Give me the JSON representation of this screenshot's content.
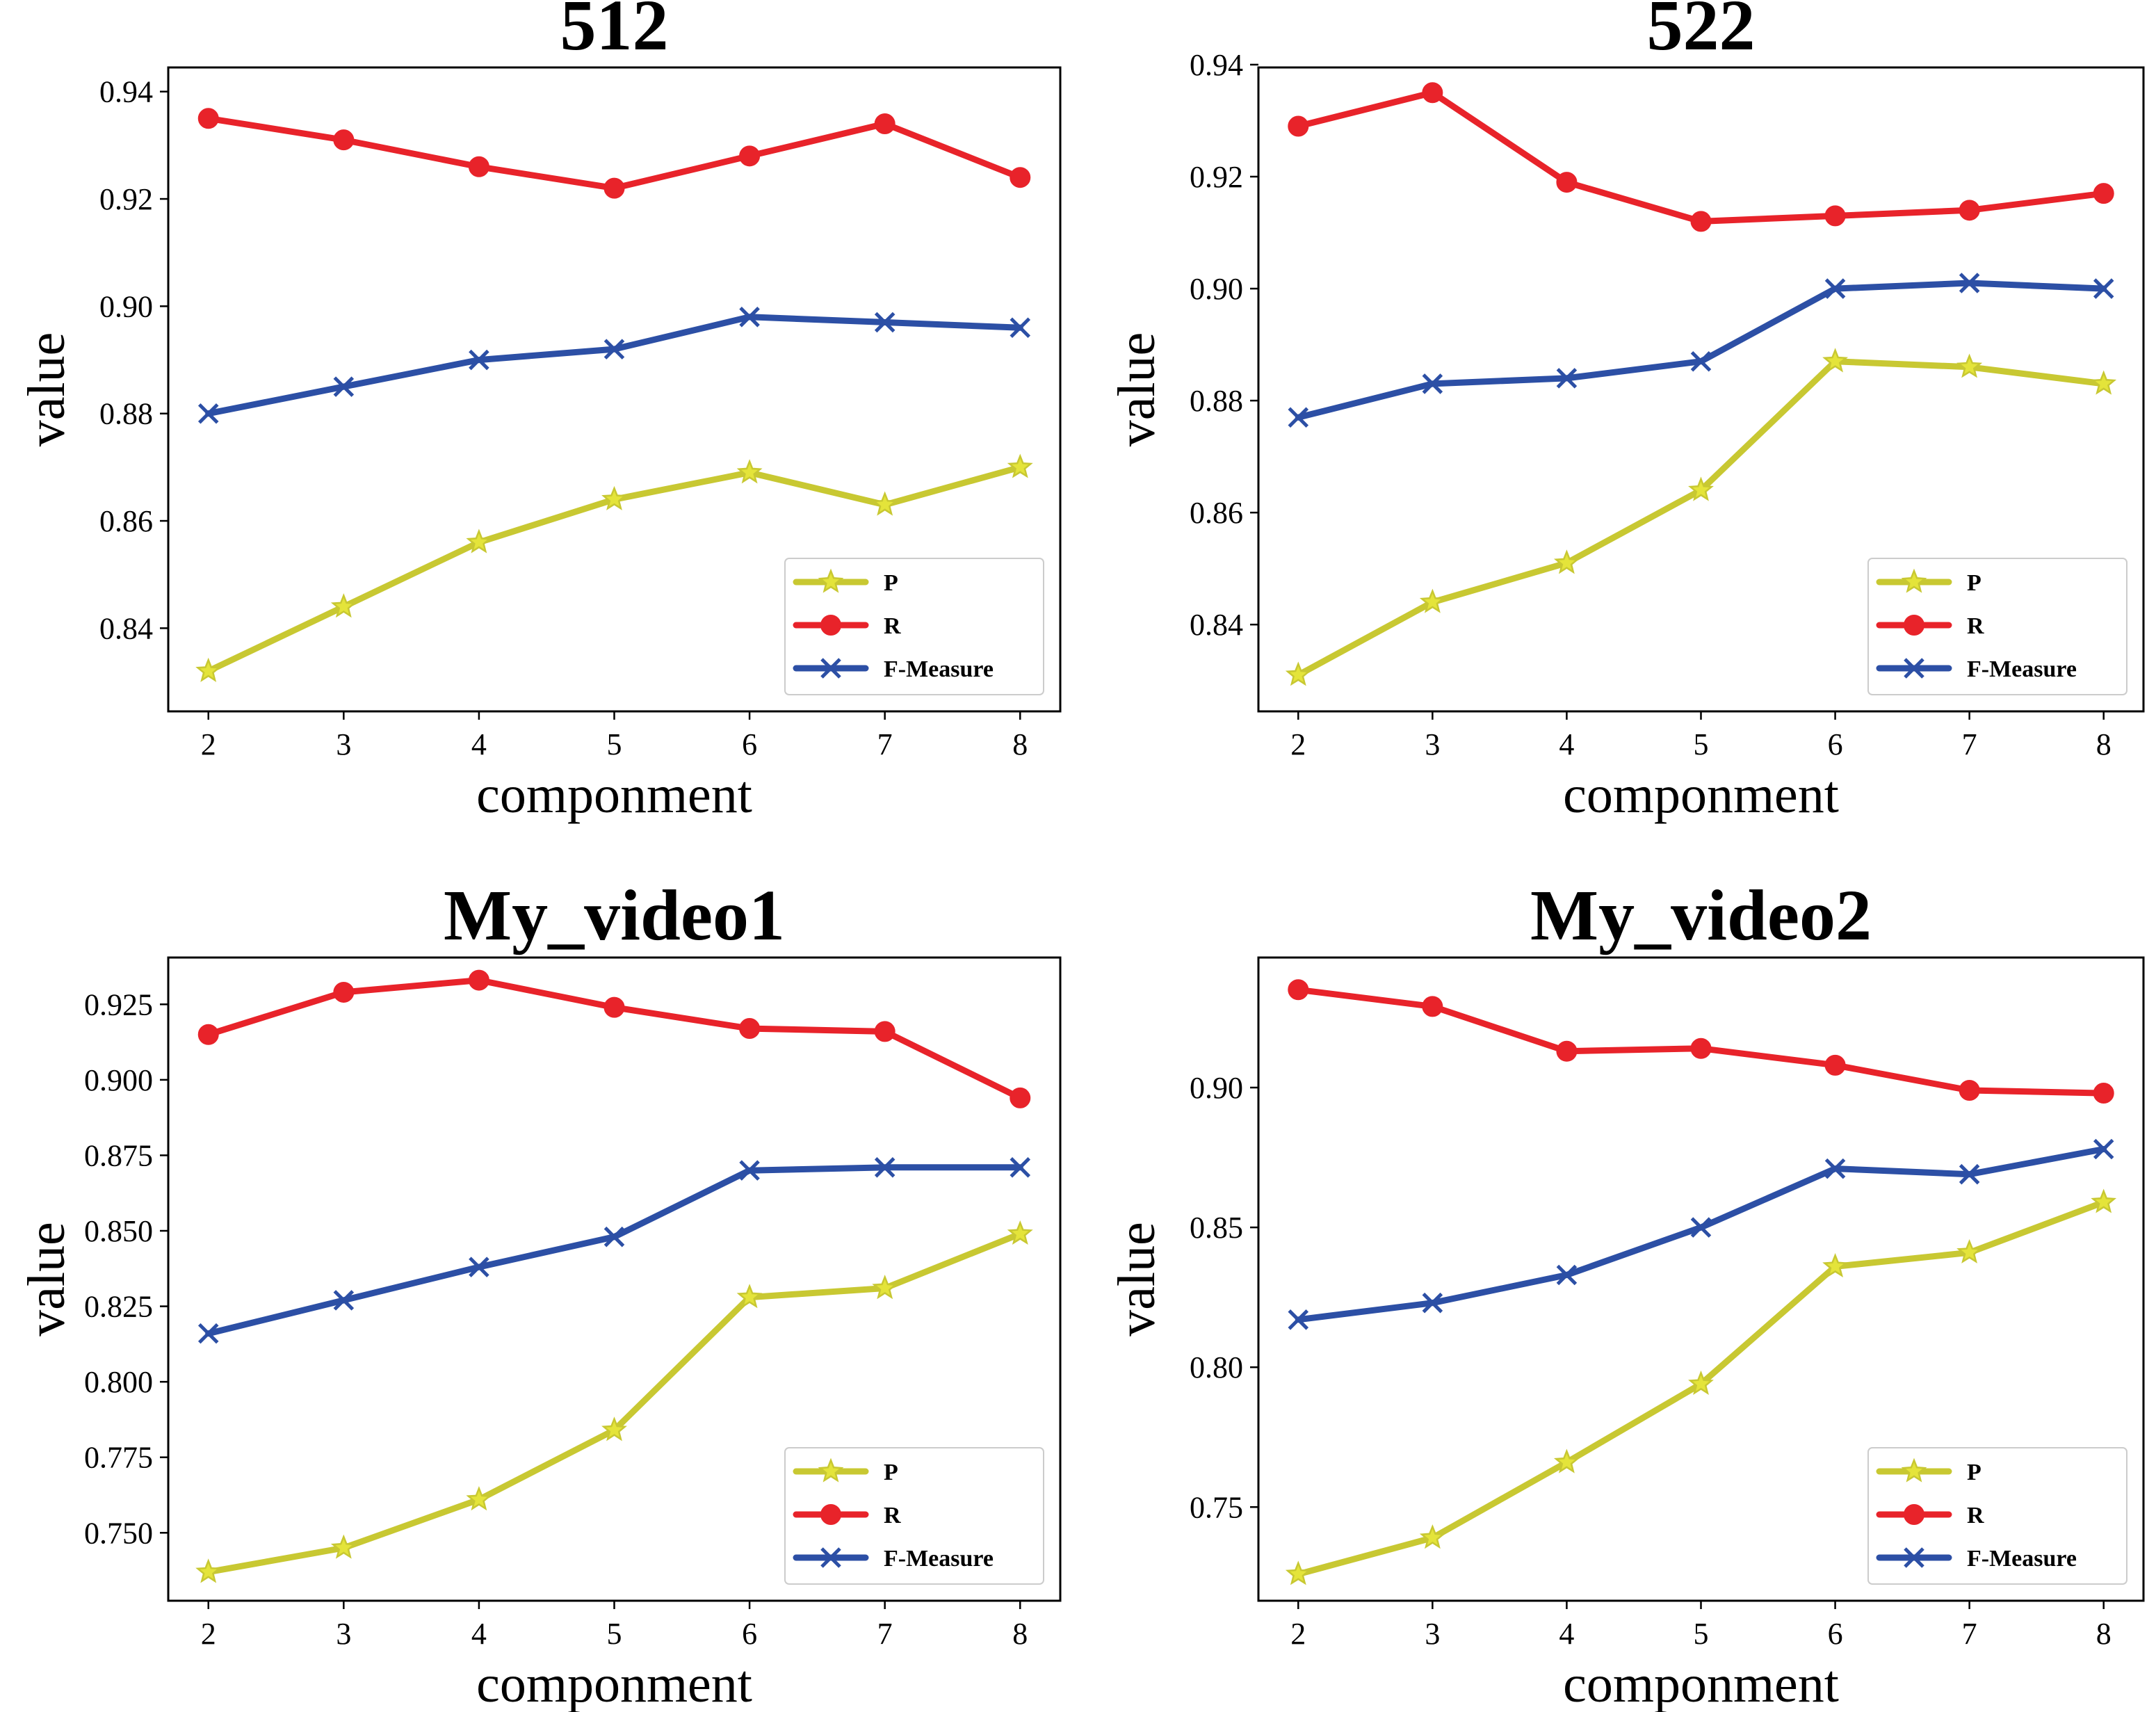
{
  "chart_data": [
    {
      "type": "line",
      "title": "512",
      "xlabel": "componment",
      "ylabel": "value",
      "x": [
        2,
        3,
        4,
        5,
        6,
        7,
        8
      ],
      "ylim": [
        0.8245,
        0.9445
      ],
      "yticks": [
        0.84,
        0.86,
        0.88,
        0.9,
        0.92,
        0.94
      ],
      "ytick_labels": [
        "0.84",
        "0.86",
        "0.88",
        "0.90",
        "0.92",
        "0.94"
      ],
      "legend_position": "bottom-right",
      "series": [
        {
          "name": "P",
          "color": "#c8c832",
          "marker": "star",
          "values": [
            0.832,
            0.844,
            0.856,
            0.864,
            0.869,
            0.863,
            0.87
          ]
        },
        {
          "name": "R",
          "color": "#e8232a",
          "marker": "circle",
          "values": [
            0.935,
            0.931,
            0.926,
            0.922,
            0.928,
            0.934,
            0.924
          ]
        },
        {
          "name": "F-Measure",
          "color": "#2c4fa5",
          "marker": "x",
          "values": [
            0.88,
            0.885,
            0.89,
            0.892,
            0.898,
            0.897,
            0.896
          ]
        }
      ]
    },
    {
      "type": "line",
      "title": "522",
      "xlabel": "componment",
      "ylabel": "value",
      "x": [
        2,
        3,
        4,
        5,
        6,
        7,
        8
      ],
      "ylim": [
        0.8245,
        0.9395
      ],
      "yticks": [
        0.84,
        0.86,
        0.88,
        0.9,
        0.92,
        0.94
      ],
      "ytick_labels": [
        "0.84",
        "0.86",
        "0.88",
        "0.90",
        "0.92",
        "0.94"
      ],
      "legend_position": "bottom-right",
      "series": [
        {
          "name": "P",
          "color": "#c8c832",
          "marker": "star",
          "values": [
            0.831,
            0.844,
            0.851,
            0.864,
            0.887,
            0.886,
            0.883
          ]
        },
        {
          "name": "R",
          "color": "#e8232a",
          "marker": "circle",
          "values": [
            0.929,
            0.935,
            0.919,
            0.912,
            0.913,
            0.914,
            0.917
          ]
        },
        {
          "name": "F-Measure",
          "color": "#2c4fa5",
          "marker": "x",
          "values": [
            0.877,
            0.883,
            0.884,
            0.887,
            0.9,
            0.901,
            0.9
          ]
        }
      ]
    },
    {
      "type": "line",
      "title": "My_video1",
      "xlabel": "componment",
      "ylabel": "value",
      "x": [
        2,
        3,
        4,
        5,
        6,
        7,
        8
      ],
      "ylim": [
        0.7275,
        0.9405
      ],
      "yticks": [
        0.75,
        0.775,
        0.8,
        0.825,
        0.85,
        0.875,
        0.9,
        0.925
      ],
      "ytick_labels": [
        "0.750",
        "0.775",
        "0.800",
        "0.825",
        "0.850",
        "0.875",
        "0.900",
        "0.925"
      ],
      "legend_position": "bottom-right",
      "series": [
        {
          "name": "P",
          "color": "#c8c832",
          "marker": "star",
          "values": [
            0.737,
            0.745,
            0.761,
            0.784,
            0.828,
            0.831,
            0.849
          ]
        },
        {
          "name": "R",
          "color": "#e8232a",
          "marker": "circle",
          "values": [
            0.915,
            0.929,
            0.933,
            0.924,
            0.917,
            0.916,
            0.894
          ]
        },
        {
          "name": "F-Measure",
          "color": "#2c4fa5",
          "marker": "x",
          "values": [
            0.816,
            0.827,
            0.838,
            0.848,
            0.87,
            0.871,
            0.871
          ]
        }
      ]
    },
    {
      "type": "line",
      "title": "My_video2",
      "xlabel": "componment",
      "ylabel": "value",
      "x": [
        2,
        3,
        4,
        5,
        6,
        7,
        8
      ],
      "ylim": [
        0.7165,
        0.9465
      ],
      "yticks": [
        0.75,
        0.8,
        0.85,
        0.9
      ],
      "ytick_labels": [
        "0.75",
        "0.80",
        "0.85",
        "0.90"
      ],
      "legend_position": "bottom-right",
      "series": [
        {
          "name": "P",
          "color": "#c8c832",
          "marker": "star",
          "values": [
            0.726,
            0.739,
            0.766,
            0.794,
            0.836,
            0.841,
            0.859
          ]
        },
        {
          "name": "R",
          "color": "#e8232a",
          "marker": "circle",
          "values": [
            0.935,
            0.929,
            0.913,
            0.914,
            0.908,
            0.899,
            0.898
          ]
        },
        {
          "name": "F-Measure",
          "color": "#2c4fa5",
          "marker": "x",
          "values": [
            0.817,
            0.823,
            0.833,
            0.85,
            0.871,
            0.869,
            0.878
          ]
        }
      ]
    }
  ]
}
